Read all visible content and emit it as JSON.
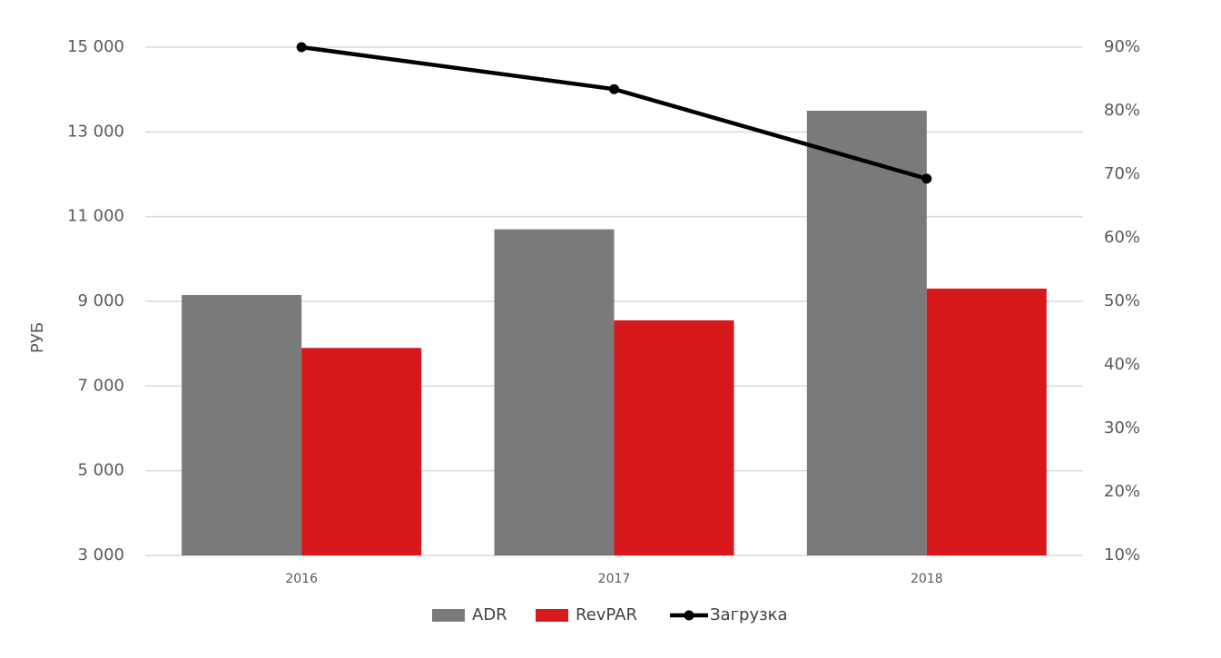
{
  "chart_data": {
    "type": "bar",
    "y_label": "РУБ",
    "categories": [
      "2016",
      "2017",
      "2018"
    ],
    "series": [
      {
        "name": "ADR",
        "color": "#7a7a7a",
        "values": [
          9150,
          10700,
          13500
        ]
      },
      {
        "name": "RevPAR",
        "color": "#d7191c",
        "values": [
          7900,
          8550,
          9300
        ]
      },
      {
        "name": "Загрузка",
        "type": "line",
        "axis": "y2",
        "color": "#000000",
        "values": [
          90,
          83.4,
          69.3
        ]
      }
    ],
    "ylim": [
      3000,
      15000
    ],
    "yticks": [
      {
        "value": 3000,
        "label": "3 000"
      },
      {
        "value": 5000,
        "label": "5 000"
      },
      {
        "value": 7000,
        "label": "7 000"
      },
      {
        "value": 9000,
        "label": "9 000"
      },
      {
        "value": 11000,
        "label": "11 000"
      },
      {
        "value": 13000,
        "label": "13 000"
      },
      {
        "value": 15000,
        "label": "15 000"
      }
    ],
    "y2lim": [
      10,
      90
    ],
    "y2ticks": [
      {
        "value": 10,
        "label": "10%"
      },
      {
        "value": 20,
        "label": "20%"
      },
      {
        "value": 30,
        "label": "30%"
      },
      {
        "value": 40,
        "label": "40%"
      },
      {
        "value": 50,
        "label": "50%"
      },
      {
        "value": 60,
        "label": "60%"
      },
      {
        "value": 70,
        "label": "70%"
      },
      {
        "value": 80,
        "label": "80%"
      },
      {
        "value": 90,
        "label": "90%"
      }
    ],
    "grid": true,
    "legend": "bottom"
  }
}
